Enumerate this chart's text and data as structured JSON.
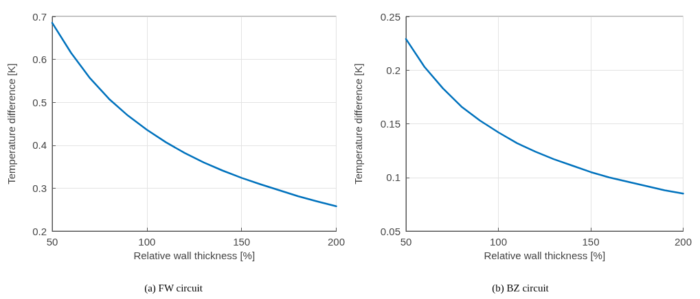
{
  "chart_data": [
    {
      "type": "line",
      "xlabel": "Relative wall thickness [%]",
      "ylabel": "Temperature difference [K]",
      "annotations": [
        "(a) FW circuit"
      ],
      "x": [
        50,
        60,
        70,
        80,
        90,
        100,
        110,
        120,
        130,
        140,
        150,
        160,
        170,
        180,
        190,
        200
      ],
      "series": [
        {
          "color": "#0072bd",
          "values": [
            0.685,
            0.615,
            0.556,
            0.508,
            0.469,
            0.436,
            0.407,
            0.382,
            0.36,
            0.341,
            0.324,
            0.309,
            0.295,
            0.281,
            0.269,
            0.258
          ]
        }
      ],
      "xlim": [
        50,
        200
      ],
      "xticks": [
        50,
        100,
        150,
        200
      ],
      "ylim": [
        0.2,
        0.7
      ],
      "yticks": [
        0.2,
        0.3,
        0.4,
        0.5,
        0.6,
        0.7
      ],
      "grid": true,
      "marker": "none",
      "line_style": "solid"
    },
    {
      "type": "line",
      "xlabel": "Relative wall thickness [%]",
      "ylabel": "Temperature difference [K]",
      "annotations": [
        "(b) BZ circuit"
      ],
      "x": [
        50,
        60,
        70,
        80,
        90,
        100,
        110,
        120,
        130,
        140,
        150,
        160,
        170,
        180,
        190,
        200
      ],
      "series": [
        {
          "color": "#0072bd",
          "values": [
            0.229,
            0.203,
            0.183,
            0.166,
            0.153,
            0.142,
            0.132,
            0.124,
            0.117,
            0.111,
            0.105,
            0.1,
            0.096,
            0.092,
            0.088,
            0.085
          ]
        }
      ],
      "xlim": [
        50,
        200
      ],
      "xticks": [
        50,
        100,
        150,
        200
      ],
      "ylim": [
        0.05,
        0.25
      ],
      "yticks": [
        0.05,
        0.1,
        0.15,
        0.2,
        0.25
      ],
      "grid": true,
      "marker": "none",
      "line_style": "solid"
    }
  ]
}
